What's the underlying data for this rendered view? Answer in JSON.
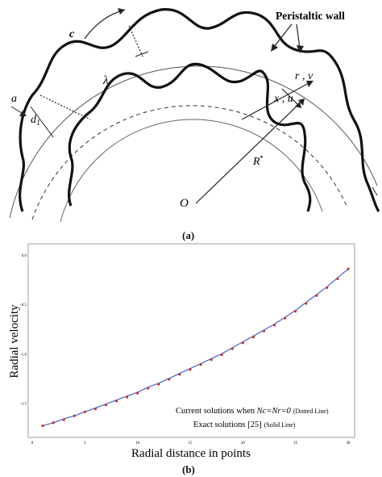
{
  "figure_a": {
    "caption": "(a)",
    "labels": {
      "peristaltic_wall": "Peristaltic wall",
      "c": "c",
      "a": "a",
      "d1": "d",
      "d1_sub": "1",
      "lambda": "λ",
      "xu": "x , u",
      "rv": "r , v",
      "R": "R",
      "R_sup": "•",
      "O": "O"
    }
  },
  "figure_b": {
    "caption": "(b)",
    "xlabel": "Radial distance in points",
    "ylabel": "Radial velocity",
    "legend": {
      "line1_prefix": "Current solutions when ",
      "line1_math": "Nc=Nr=0",
      "line1_suffix": "(Dotted Line)",
      "line2_text": "Exact solutions [25]",
      "line2_suffix": "(Solid Line)"
    },
    "colors": {
      "solid_line": "#4a5fd0",
      "dots": "#c0392b"
    }
  },
  "chart_data": {
    "type": "line",
    "title": "",
    "xlabel": "Radial distance in points",
    "ylabel": "Radial velocity",
    "xlim": [
      0,
      30
    ],
    "ylim": [
      -1.8,
      0.05
    ],
    "x_ticks": [
      "0",
      "5",
      "10",
      "15",
      "20",
      "25",
      "30"
    ],
    "y_ticks": [
      "0.0",
      "-0.5",
      "-1.0",
      "-1.5"
    ],
    "series": [
      {
        "name": "Exact solutions [25]",
        "style": "solid",
        "x": [
          1,
          2,
          3,
          4,
          5,
          6,
          7,
          8,
          9,
          10,
          11,
          12,
          13,
          14,
          15,
          16,
          17,
          18,
          19,
          20,
          21,
          22,
          23,
          24,
          25,
          26,
          27,
          28,
          29,
          30
        ],
        "y": [
          -1.73,
          -1.7,
          -1.66,
          -1.63,
          -1.59,
          -1.55,
          -1.51,
          -1.47,
          -1.43,
          -1.39,
          -1.34,
          -1.3,
          -1.25,
          -1.2,
          -1.15,
          -1.1,
          -1.05,
          -1.0,
          -0.94,
          -0.88,
          -0.82,
          -0.76,
          -0.7,
          -0.63,
          -0.56,
          -0.48,
          -0.4,
          -0.32,
          -0.23,
          -0.14
        ]
      },
      {
        "name": "Current solutions when Nc=Nr=0",
        "style": "dotted",
        "x": [
          1,
          2,
          3,
          4,
          5,
          6,
          7,
          8,
          9,
          10,
          11,
          12,
          13,
          14,
          15,
          16,
          17,
          18,
          19,
          20,
          21,
          22,
          23,
          24,
          25,
          26,
          27,
          28,
          29,
          30
        ],
        "y": [
          -1.73,
          -1.7,
          -1.67,
          -1.63,
          -1.59,
          -1.56,
          -1.52,
          -1.48,
          -1.44,
          -1.4,
          -1.35,
          -1.31,
          -1.26,
          -1.21,
          -1.16,
          -1.11,
          -1.06,
          -1.01,
          -0.95,
          -0.89,
          -0.83,
          -0.77,
          -0.71,
          -0.64,
          -0.57,
          -0.49,
          -0.41,
          -0.33,
          -0.24,
          -0.14
        ]
      }
    ]
  }
}
